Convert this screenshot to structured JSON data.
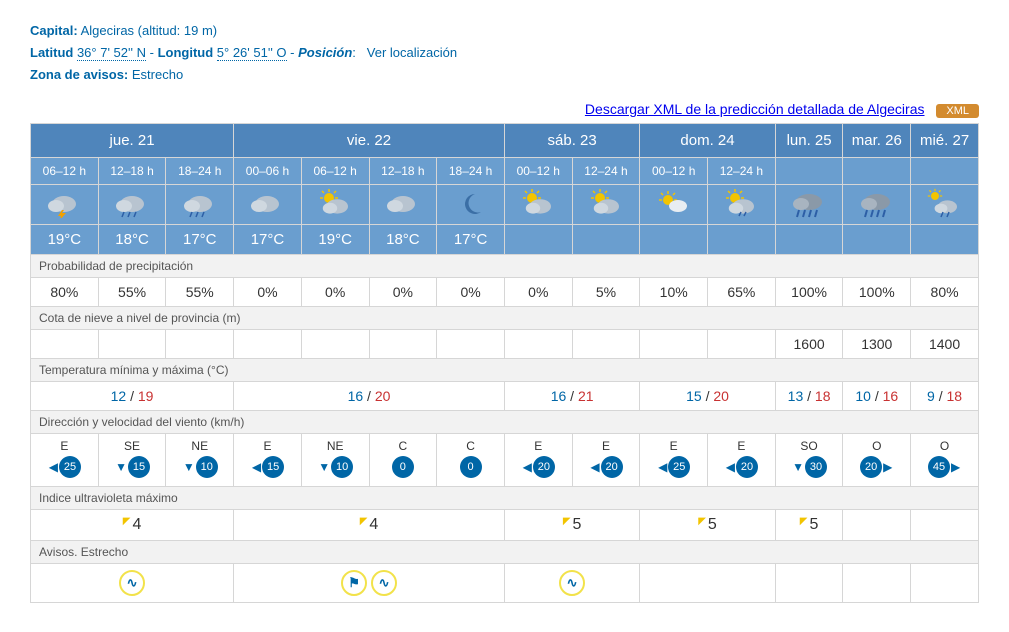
{
  "meta": {
    "capital_label": "Capital:",
    "capital_value": "Algeciras (altitud: 19 m)",
    "lat_label": "Latitud",
    "lat_value": "36° 7' 52'' N",
    "lon_label": "Longitud",
    "lon_value": "5° 26' 51'' O",
    "pos_label": "Posición",
    "pos_link": "Ver localización",
    "zone_label": "Zona de avisos:",
    "zone_value": "Estrecho"
  },
  "download": {
    "text": "Descargar XML de la predicción detallada de Algeciras",
    "badge": "XML"
  },
  "colors": {
    "header_bg": "#4f85bb",
    "cell_bg": "#6a9ecf",
    "link": "#0066a6",
    "tmax": "#c83232",
    "badge": "#d38b2f"
  },
  "days": [
    {
      "label": "jue. 21",
      "span": 3
    },
    {
      "label": "vie. 22",
      "span": 4
    },
    {
      "label": "sáb. 23",
      "span": 2
    },
    {
      "label": "dom. 24",
      "span": 2
    },
    {
      "label": "lun. 25",
      "span": 1
    },
    {
      "label": "mar. 26",
      "span": 1
    },
    {
      "label": "mié. 27",
      "span": 1
    }
  ],
  "periods": [
    "06–12 h",
    "12–18 h",
    "18–24 h",
    "00–06 h",
    "06–12 h",
    "12–18 h",
    "18–24 h",
    "00–12 h",
    "12–24 h",
    "00–12 h",
    "12–24 h",
    "",
    "",
    ""
  ],
  "sky_icons": [
    "storm",
    "rain",
    "rain",
    "cloud",
    "suncloud",
    "cloud",
    "night",
    "suncloud",
    "suncloud",
    "sun-sm",
    "rain-lt",
    "rain-hv",
    "rain-hv",
    "sunrain"
  ],
  "temps_header": [
    "19°C",
    "18°C",
    "17°C",
    "17°C",
    "19°C",
    "18°C",
    "17°C",
    "",
    "",
    "",
    "",
    "",
    "",
    ""
  ],
  "sections": {
    "precip": "Probabilidad de precipitación",
    "snow": "Cota de nieve a nivel de provincia (m)",
    "temp": "Temperatura mínima y máxima (°C)",
    "wind": "Dirección y velocidad del viento (km/h)",
    "uv": "Indice ultravioleta máximo",
    "avisos": "Avisos. Estrecho"
  },
  "precip": [
    "80%",
    "55%",
    "55%",
    "0%",
    "0%",
    "0%",
    "0%",
    "0%",
    "5%",
    "10%",
    "65%",
    "100%",
    "100%",
    "80%"
  ],
  "snow": [
    "",
    "",
    "",
    "",
    "",
    "",
    "",
    "",
    "",
    "",
    "",
    "1600",
    "1300",
    "1400"
  ],
  "minmax": [
    {
      "span": 3,
      "min": "12",
      "max": "19"
    },
    {
      "span": 4,
      "min": "16",
      "max": "20"
    },
    {
      "span": 2,
      "min": "16",
      "max": "21"
    },
    {
      "span": 2,
      "min": "15",
      "max": "20"
    },
    {
      "span": 1,
      "min": "13",
      "max": "18"
    },
    {
      "span": 1,
      "min": "10",
      "max": "16"
    },
    {
      "span": 1,
      "min": "9",
      "max": "18"
    }
  ],
  "wind": [
    {
      "dir": "E",
      "spd": "25",
      "arrow": "left"
    },
    {
      "dir": "SE",
      "spd": "15",
      "arrow": "down"
    },
    {
      "dir": "NE",
      "spd": "10",
      "arrow": "down"
    },
    {
      "dir": "E",
      "spd": "15",
      "arrow": "left"
    },
    {
      "dir": "NE",
      "spd": "10",
      "arrow": "down"
    },
    {
      "dir": "C",
      "spd": "0",
      "arrow": "none"
    },
    {
      "dir": "C",
      "spd": "0",
      "arrow": "none"
    },
    {
      "dir": "E",
      "spd": "20",
      "arrow": "left"
    },
    {
      "dir": "E",
      "spd": "20",
      "arrow": "left"
    },
    {
      "dir": "E",
      "spd": "25",
      "arrow": "left"
    },
    {
      "dir": "E",
      "spd": "20",
      "arrow": "left"
    },
    {
      "dir": "SO",
      "spd": "30",
      "arrow": "down"
    },
    {
      "dir": "O",
      "spd": "20",
      "arrow": "right"
    },
    {
      "dir": "O",
      "spd": "45",
      "arrow": "right"
    }
  ],
  "uv": [
    {
      "span": 3,
      "val": "4"
    },
    {
      "span": 4,
      "val": "4"
    },
    {
      "span": 2,
      "val": "5"
    },
    {
      "span": 2,
      "val": "5"
    },
    {
      "span": 1,
      "val": "5"
    },
    {
      "span": 1,
      "val": ""
    },
    {
      "span": 1,
      "val": ""
    }
  ],
  "avisos": [
    {
      "span": 3,
      "icons": [
        "wave"
      ]
    },
    {
      "span": 4,
      "icons": [
        "coast",
        "wave"
      ]
    },
    {
      "span": 2,
      "icons": [
        "wave"
      ]
    },
    {
      "span": 2,
      "icons": []
    },
    {
      "span": 1,
      "icons": []
    },
    {
      "span": 1,
      "icons": []
    },
    {
      "span": 1,
      "icons": []
    }
  ]
}
